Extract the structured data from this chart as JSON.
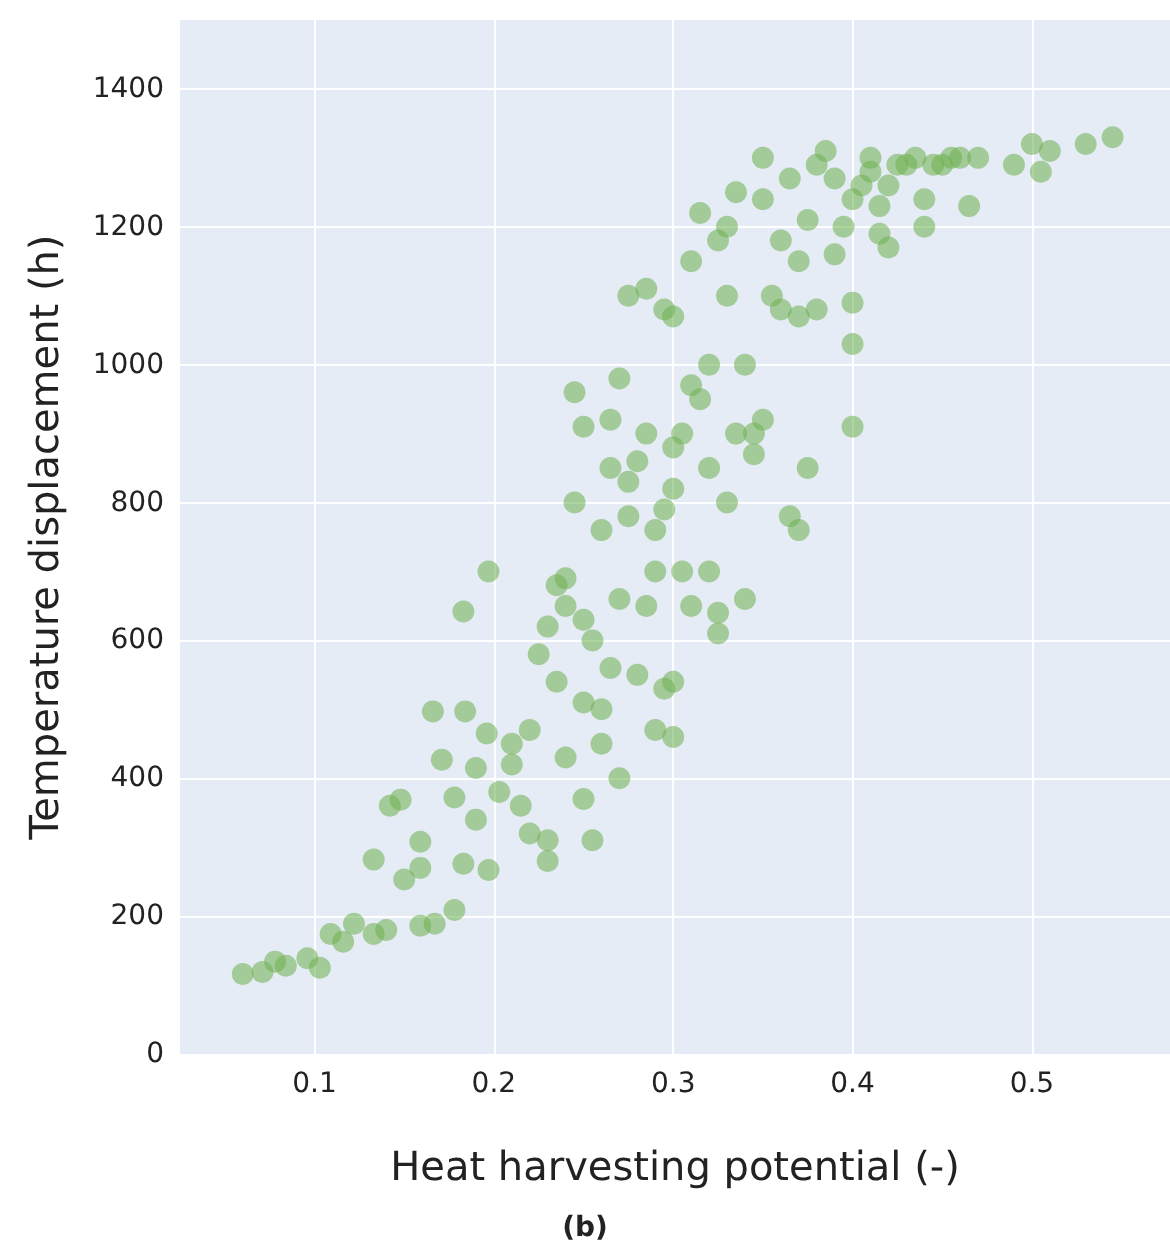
{
  "chart_data": {
    "type": "scatter",
    "xlabel": "Heat harvesting potential (-)",
    "ylabel": "Temperature displacement (h)",
    "annotations": [
      "(b)"
    ],
    "xlim": [
      0.025,
      0.577
    ],
    "ylim": [
      0,
      1500
    ],
    "xticks": [
      0.1,
      0.2,
      0.3,
      0.4,
      0.5
    ],
    "yticks": [
      0,
      200,
      400,
      600,
      800,
      1000,
      1200,
      1400
    ],
    "grid": true,
    "marker": "circle",
    "series": [
      {
        "color": "#6db04f",
        "x": [
          0.06,
          0.071,
          0.078,
          0.084,
          0.096,
          0.103,
          0.109,
          0.116,
          0.122,
          0.133,
          0.14,
          0.133,
          0.142,
          0.148,
          0.15,
          0.159,
          0.159,
          0.159,
          0.167,
          0.166,
          0.171,
          0.178,
          0.178,
          0.183,
          0.183,
          0.184,
          0.19,
          0.19,
          0.197,
          0.196,
          0.197,
          0.203,
          0.21,
          0.21,
          0.215,
          0.22,
          0.22,
          0.225,
          0.23,
          0.23,
          0.23,
          0.235,
          0.235,
          0.24,
          0.24,
          0.24,
          0.245,
          0.245,
          0.25,
          0.25,
          0.25,
          0.25,
          0.255,
          0.255,
          0.26,
          0.26,
          0.26,
          0.265,
          0.265,
          0.265,
          0.27,
          0.27,
          0.27,
          0.275,
          0.275,
          0.275,
          0.28,
          0.28,
          0.285,
          0.285,
          0.285,
          0.29,
          0.29,
          0.29,
          0.295,
          0.295,
          0.295,
          0.3,
          0.3,
          0.3,
          0.3,
          0.3,
          0.305,
          0.305,
          0.31,
          0.31,
          0.31,
          0.315,
          0.315,
          0.32,
          0.32,
          0.32,
          0.325,
          0.325,
          0.325,
          0.33,
          0.33,
          0.33,
          0.335,
          0.335,
          0.34,
          0.34,
          0.345,
          0.345,
          0.35,
          0.35,
          0.35,
          0.355,
          0.36,
          0.36,
          0.365,
          0.365,
          0.37,
          0.37,
          0.37,
          0.375,
          0.375,
          0.38,
          0.38,
          0.385,
          0.39,
          0.39,
          0.395,
          0.4,
          0.4,
          0.4,
          0.4,
          0.405,
          0.41,
          0.41,
          0.415,
          0.415,
          0.42,
          0.42,
          0.425,
          0.43,
          0.435,
          0.44,
          0.44,
          0.445,
          0.45,
          0.455,
          0.46,
          0.465,
          0.47,
          0.49,
          0.5,
          0.505,
          0.51,
          0.53,
          0.545
        ],
        "values": [
          116,
          119,
          134,
          128,
          139,
          125,
          174,
          163,
          189,
          174,
          180,
          282,
          360,
          369,
          253,
          270,
          308,
          186,
          189,
          497,
          427,
          372,
          209,
          642,
          276,
          497,
          340,
          415,
          700,
          465,
          267,
          380,
          450,
          420,
          360,
          470,
          320,
          580,
          280,
          310,
          620,
          680,
          540,
          650,
          430,
          690,
          960,
          800,
          630,
          910,
          510,
          370,
          600,
          310,
          500,
          450,
          760,
          920,
          850,
          560,
          980,
          660,
          400,
          780,
          830,
          1100,
          550,
          860,
          650,
          900,
          1110,
          470,
          700,
          760,
          530,
          790,
          1080,
          820,
          1070,
          880,
          460,
          540,
          700,
          900,
          650,
          1150,
          970,
          950,
          1220,
          1000,
          700,
          850,
          1180,
          640,
          610,
          800,
          1200,
          1100,
          900,
          1250,
          660,
          1000,
          870,
          900,
          920,
          1300,
          1240,
          1100,
          1080,
          1180,
          1270,
          780,
          760,
          1070,
          1150,
          850,
          1210,
          1290,
          1080,
          1310,
          1160,
          1270,
          1200,
          1030,
          1090,
          1240,
          910,
          1260,
          1300,
          1280,
          1190,
          1230,
          1170,
          1260,
          1290,
          1290,
          1300,
          1240,
          1200,
          1290,
          1290,
          1300,
          1300,
          1230,
          1300,
          1290,
          1320,
          1280,
          1310,
          1320,
          1330
        ]
      }
    ]
  }
}
